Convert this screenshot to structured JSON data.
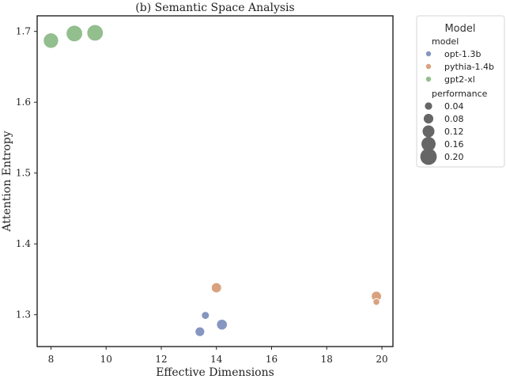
{
  "chart_data": {
    "type": "scatter",
    "title": "(b) Semantic Space Analysis",
    "xlabel": "Effective Dimensions",
    "ylabel": "Attention Entropy",
    "xlim": [
      7.5,
      20.4
    ],
    "ylim": [
      1.255,
      1.722
    ],
    "xticks": [
      8,
      10,
      12,
      14,
      16,
      18,
      20
    ],
    "yticks": [
      1.3,
      1.4,
      1.5,
      1.6,
      1.7
    ],
    "grid": false,
    "legend": {
      "placement": "outside-right",
      "title": "Model",
      "hue_label": "model",
      "size_label": "performance",
      "size_levels": [
        0.04,
        0.08,
        0.12,
        0.16,
        0.2
      ]
    },
    "series": [
      {
        "name": "opt-1.3b",
        "color": "#8596c1",
        "points": [
          {
            "x": 13.6,
            "y": 1.299,
            "performance": 0.05
          },
          {
            "x": 14.2,
            "y": 1.286,
            "performance": 0.1
          },
          {
            "x": 13.4,
            "y": 1.276,
            "performance": 0.08
          }
        ]
      },
      {
        "name": "pythia-1.4b",
        "color": "#d9a27f",
        "points": [
          {
            "x": 14.0,
            "y": 1.338,
            "performance": 0.09
          },
          {
            "x": 19.8,
            "y": 1.326,
            "performance": 0.09
          },
          {
            "x": 19.8,
            "y": 1.318,
            "performance": 0.03
          }
        ]
      },
      {
        "name": "gpt2-xl",
        "color": "#93be8e",
        "points": [
          {
            "x": 8.0,
            "y": 1.687,
            "performance": 0.18
          },
          {
            "x": 8.85,
            "y": 1.697,
            "performance": 0.2
          },
          {
            "x": 9.6,
            "y": 1.698,
            "performance": 0.2
          }
        ]
      }
    ]
  }
}
